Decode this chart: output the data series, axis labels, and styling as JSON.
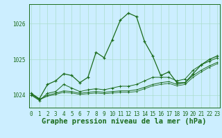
{
  "title": "Graphe pression niveau de la mer (hPa)",
  "bg_color": "#cceeff",
  "grid_color": "#aaddcc",
  "line_color": "#1a6b1a",
  "x_ticks": [
    0,
    1,
    2,
    3,
    4,
    5,
    6,
    7,
    8,
    9,
    10,
    11,
    12,
    13,
    14,
    15,
    16,
    17,
    18,
    19,
    20,
    21,
    22,
    23
  ],
  "y_ticks": [
    1024,
    1025,
    1026
  ],
  "ylim": [
    1023.65,
    1026.55
  ],
  "xlim": [
    -0.3,
    23.3
  ],
  "series": {
    "main": {
      "x": [
        0,
        1,
        2,
        3,
        4,
        5,
        6,
        7,
        8,
        9,
        10,
        11,
        12,
        13,
        14,
        15,
        16,
        17,
        18,
        19,
        20,
        21,
        22,
        23
      ],
      "y": [
        1024.05,
        1023.9,
        1024.3,
        1024.4,
        1024.6,
        1024.55,
        1024.35,
        1024.5,
        1025.2,
        1025.05,
        1025.55,
        1026.1,
        1026.3,
        1026.2,
        1025.5,
        1025.1,
        1024.55,
        1024.65,
        1024.35,
        1024.35,
        1024.6,
        1024.85,
        1025.0,
        1025.1
      ]
    },
    "line2": {
      "x": [
        0,
        1,
        2,
        3,
        4,
        5,
        6,
        7,
        8,
        9,
        10,
        11,
        12,
        13,
        14,
        15,
        16,
        17,
        18,
        19,
        20,
        21,
        22,
        23
      ],
      "y": [
        1024.0,
        1023.85,
        1024.05,
        1024.1,
        1024.3,
        1024.2,
        1024.1,
        1024.15,
        1024.18,
        1024.15,
        1024.2,
        1024.25,
        1024.25,
        1024.3,
        1024.4,
        1024.5,
        1024.5,
        1024.5,
        1024.4,
        1024.45,
        1024.7,
        1024.85,
        1024.95,
        1025.05
      ]
    },
    "line3": {
      "x": [
        0,
        1,
        2,
        3,
        4,
        5,
        6,
        7,
        8,
        9,
        10,
        11,
        12,
        13,
        14,
        15,
        16,
        17,
        18,
        19,
        20,
        21,
        22,
        23
      ],
      "y": [
        1024.05,
        1023.88,
        1024.0,
        1024.05,
        1024.12,
        1024.1,
        1024.05,
        1024.08,
        1024.1,
        1024.08,
        1024.1,
        1024.12,
        1024.12,
        1024.15,
        1024.22,
        1024.3,
        1024.35,
        1024.38,
        1024.3,
        1024.35,
        1024.55,
        1024.7,
        1024.82,
        1024.92
      ]
    },
    "line4": {
      "x": [
        0,
        1,
        2,
        3,
        4,
        5,
        6,
        7,
        8,
        9,
        10,
        11,
        12,
        13,
        14,
        15,
        16,
        17,
        18,
        19,
        20,
        21,
        22,
        23
      ],
      "y": [
        1024.02,
        1023.87,
        1023.97,
        1024.02,
        1024.08,
        1024.06,
        1024.02,
        1024.04,
        1024.06,
        1024.04,
        1024.06,
        1024.08,
        1024.08,
        1024.1,
        1024.18,
        1024.26,
        1024.3,
        1024.33,
        1024.26,
        1024.3,
        1024.5,
        1024.65,
        1024.78,
        1024.88
      ]
    }
  },
  "title_fontsize": 7.5,
  "tick_fontsize": 5.5
}
